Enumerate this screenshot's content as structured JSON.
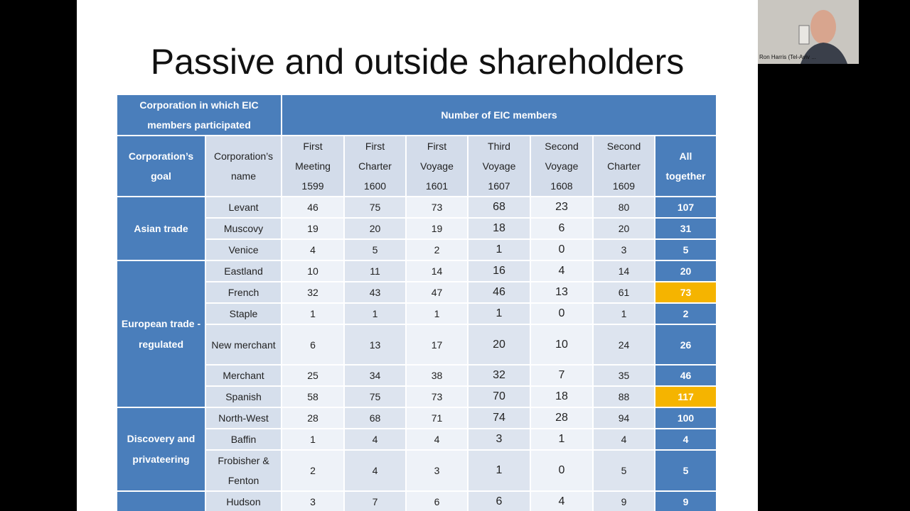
{
  "slide": {
    "title": "Passive and outside shareholders"
  },
  "table": {
    "group_headers": [
      "Corporation in which EIC members participated",
      "Number of EIC members"
    ],
    "columns": [
      "Corporation’s goal",
      "Corporation’s name",
      "First Meeting 1599",
      "First Charter 1600",
      "First Voyage 1601",
      "Third Voyage 1607",
      "Second Voyage 1608",
      "Second Charter 1609",
      "All together"
    ],
    "groups": [
      {
        "goal": "Asian trade",
        "rows": [
          {
            "name": "Levant",
            "values": [
              46,
              75,
              73,
              68,
              23,
              80,
              107
            ]
          },
          {
            "name": "Muscovy",
            "values": [
              19,
              20,
              19,
              18,
              6,
              20,
              31
            ]
          },
          {
            "name": "Venice",
            "values": [
              4,
              5,
              2,
              1,
              0,
              3,
              5
            ]
          }
        ]
      },
      {
        "goal": "European trade - regulated",
        "rows": [
          {
            "name": "Eastland",
            "values": [
              10,
              11,
              14,
              16,
              4,
              14,
              20
            ]
          },
          {
            "name": "French",
            "values": [
              32,
              43,
              47,
              46,
              13,
              61,
              73
            ],
            "highlight": true
          },
          {
            "name": "Staple",
            "values": [
              1,
              1,
              1,
              1,
              0,
              1,
              2
            ]
          },
          {
            "name": "New merchant",
            "values": [
              6,
              13,
              17,
              20,
              10,
              24,
              26
            ]
          },
          {
            "name": "Merchant",
            "values": [
              25,
              34,
              38,
              32,
              7,
              35,
              46
            ]
          },
          {
            "name": "Spanish",
            "values": [
              58,
              75,
              73,
              70,
              18,
              88,
              117
            ],
            "highlight": true
          }
        ]
      },
      {
        "goal": "Discovery and privateering",
        "rows": [
          {
            "name": "North-West",
            "values": [
              28,
              68,
              71,
              74,
              28,
              94,
              100
            ]
          },
          {
            "name": "Baffin",
            "values": [
              1,
              4,
              4,
              3,
              1,
              4,
              4
            ]
          },
          {
            "name": "Frobisher & Fenton",
            "values": [
              2,
              4,
              3,
              1,
              0,
              5,
              5
            ]
          }
        ]
      },
      {
        "goal": null,
        "rows": [
          {
            "name": "Hudson",
            "values": [
              3,
              7,
              6,
              6,
              4,
              9,
              9
            ]
          }
        ]
      }
    ]
  },
  "video": {
    "participant": "Ron Harris (Tel-Aviv ..."
  }
}
